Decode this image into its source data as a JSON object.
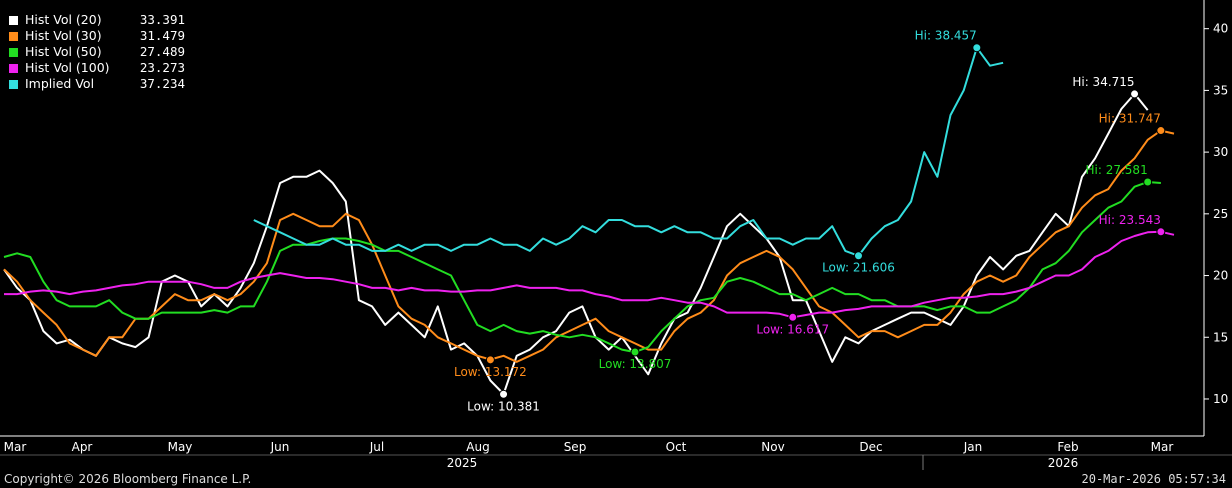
{
  "chart_data": {
    "type": "line",
    "y_axis": {
      "side": "right",
      "ticks": [
        10,
        15,
        20,
        25,
        30,
        35,
        40
      ],
      "ylim": [
        7,
        42
      ]
    },
    "x_axis": {
      "months": [
        "Mar",
        "Apr",
        "May",
        "Jun",
        "Jul",
        "Aug",
        "Sep",
        "Oct",
        "Nov",
        "Dec",
        "Jan",
        "Feb",
        "Mar"
      ],
      "years": [
        "2025",
        "2026"
      ]
    },
    "grid": false,
    "legend_position": "top-left",
    "series": [
      {
        "name": "Hist Vol (20)",
        "color": "#ffffff",
        "last": "33.391",
        "values": [
          20.5,
          19,
          18,
          15.5,
          14.5,
          14.8,
          14,
          13.5,
          15,
          14.5,
          14.2,
          15,
          19.5,
          20,
          19.5,
          17.5,
          18.5,
          17.5,
          19,
          21,
          24,
          27.5,
          28,
          28,
          28.5,
          27.5,
          26,
          18,
          17.5,
          16,
          17,
          16,
          15,
          17.5,
          14,
          14.5,
          13.5,
          11.5,
          10.4,
          13.5,
          14,
          15,
          15.5,
          17,
          17.5,
          15,
          14,
          15,
          13.5,
          12,
          14.5,
          16.5,
          17,
          19,
          21.5,
          24,
          25,
          24,
          23,
          21.5,
          18,
          18,
          15.5,
          13,
          15,
          14.5,
          15.5,
          16,
          16.5,
          17,
          17,
          16.5,
          16,
          17.5,
          20,
          21.5,
          20.5,
          21.6,
          22,
          23.5,
          25,
          24,
          28,
          29.5,
          31.5,
          33.5,
          34.715,
          33.4
        ],
        "hi": {
          "label": "Hi: 34.715",
          "value": 34.715
        },
        "lo": {
          "label": "Low: 10.381",
          "value": 10.381
        }
      },
      {
        "name": "Hist Vol (30)",
        "color": "#ff8c1a",
        "last": "31.479",
        "values": [
          20.5,
          19.5,
          18,
          17,
          16,
          14.5,
          14,
          13.5,
          15,
          15,
          16.5,
          16.5,
          17.5,
          18.5,
          18,
          18,
          18.5,
          18,
          18.5,
          19.5,
          21,
          24.5,
          25,
          24.5,
          24,
          24,
          25,
          24.5,
          22.5,
          20,
          17.5,
          16.5,
          16,
          15,
          14.5,
          14,
          13.5,
          13.2,
          13.5,
          13,
          13.5,
          14,
          15,
          15.5,
          16,
          16.5,
          15.5,
          15,
          14.5,
          14,
          14,
          15.5,
          16.5,
          17,
          18,
          20,
          21,
          21.5,
          22,
          21.5,
          20.5,
          19,
          17.5,
          17,
          16,
          15,
          15.5,
          15.5,
          15,
          15.5,
          16,
          16,
          17,
          18.5,
          19.5,
          20,
          19.5,
          20,
          21.5,
          22.5,
          23.5,
          24,
          25.5,
          26.5,
          27,
          28.5,
          29.5,
          31,
          31.747,
          31.5
        ],
        "hi": {
          "label": "Hi: 31.747",
          "value": 31.747
        },
        "lo": {
          "label": "Low: 13.172",
          "value": 13.172
        }
      },
      {
        "name": "Hist Vol (50)",
        "color": "#22dd22",
        "last": "27.489",
        "values": [
          21.5,
          21.8,
          21.5,
          19.5,
          18,
          17.5,
          17.5,
          17.5,
          18,
          17,
          16.5,
          16.5,
          17,
          17,
          17,
          17,
          17.2,
          17,
          17.5,
          17.5,
          19.5,
          22,
          22.5,
          22.5,
          22.8,
          23,
          23,
          22.8,
          22.5,
          22,
          22,
          21.5,
          21,
          20.5,
          20,
          18,
          16,
          15.5,
          16,
          15.5,
          15.3,
          15.5,
          15.2,
          15,
          15.2,
          15,
          14.5,
          14,
          13.8,
          14.2,
          15.5,
          16.5,
          17.5,
          18,
          18.2,
          19.5,
          19.8,
          19.5,
          19,
          18.5,
          18.5,
          18,
          18.5,
          19,
          18.5,
          18.5,
          18,
          18,
          17.5,
          17.5,
          17.5,
          17.2,
          17.5,
          17.5,
          17,
          17,
          17.5,
          18,
          19,
          20.5,
          21,
          22,
          23.5,
          24.5,
          25.5,
          26,
          27.2,
          27.581,
          27.5
        ],
        "hi": {
          "label": "Hi: 27.581",
          "value": 27.581
        },
        "lo": {
          "label": "Low: 13.807",
          "value": 13.807
        }
      },
      {
        "name": "Hist Vol (100)",
        "color": "#ee22ee",
        "last": "23.273",
        "values": [
          18.5,
          18.5,
          18.7,
          18.8,
          18.7,
          18.5,
          18.7,
          18.8,
          19,
          19.2,
          19.3,
          19.5,
          19.5,
          19.5,
          19.5,
          19.3,
          19,
          19,
          19.5,
          19.8,
          20,
          20.2,
          20,
          19.8,
          19.8,
          19.7,
          19.5,
          19.3,
          19,
          19,
          18.8,
          19,
          18.8,
          18.8,
          18.7,
          18.7,
          18.8,
          18.8,
          19,
          19.2,
          19,
          19,
          19,
          18.8,
          18.8,
          18.5,
          18.3,
          18,
          18,
          18,
          18.2,
          18,
          17.8,
          17.8,
          17.5,
          17,
          17,
          17,
          17,
          16.9,
          16.617,
          16.8,
          17,
          17,
          17.2,
          17.3,
          17.5,
          17.5,
          17.5,
          17.5,
          17.8,
          18,
          18.2,
          18.2,
          18.3,
          18.5,
          18.5,
          18.7,
          19,
          19.5,
          20,
          20,
          20.5,
          21.5,
          22,
          22.8,
          23.2,
          23.5,
          23.543,
          23.3
        ],
        "hi": {
          "label": "Hi: 23.543",
          "value": 23.543
        },
        "lo": {
          "label": "Low: 16.617",
          "value": 16.617
        }
      },
      {
        "name": "Implied Vol",
        "color": "#33dddd",
        "last": "37.234",
        "start_index": 19,
        "values": [
          24.5,
          24,
          23.5,
          23,
          22.5,
          22.5,
          23,
          22.5,
          22.5,
          22,
          22,
          22.5,
          22,
          22.5,
          22.5,
          22,
          22.5,
          22.5,
          23,
          22.5,
          22.5,
          22,
          23,
          22.5,
          23,
          24,
          23.5,
          24.5,
          24.5,
          24,
          24,
          23.5,
          24,
          23.5,
          23.5,
          23,
          23,
          24,
          24.5,
          23,
          23,
          22.5,
          23,
          23,
          24,
          22,
          21.6,
          23,
          24,
          24.5,
          26,
          30,
          28,
          33,
          35,
          38.457,
          37,
          37.234
        ],
        "hi": {
          "label": "Hi: 38.457",
          "value": 38.457
        },
        "lo": {
          "label": "Low: 21.606",
          "value": 21.606
        }
      }
    ]
  },
  "footer": {
    "copyright": "Copyright© 2026 Bloomberg Finance L.P.",
    "timestamp": "20-Mar-2026 05:57:34"
  }
}
